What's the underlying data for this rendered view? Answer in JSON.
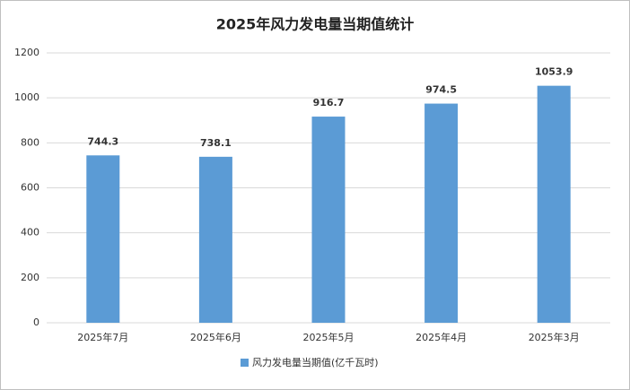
{
  "chart_data": {
    "type": "bar",
    "title": "2025年风力发电量当期值统计",
    "categories": [
      "2025年7月",
      "2025年6月",
      "2025年5月",
      "2025年4月",
      "2025年3月"
    ],
    "series": [
      {
        "name": "风力发电量当期值(亿千瓦时)",
        "color": "#5b9bd5",
        "values": [
          744.3,
          738.1,
          916.7,
          974.5,
          1053.9
        ]
      }
    ],
    "ylim": [
      0,
      1200
    ],
    "yticks": [
      0,
      200,
      400,
      600,
      800,
      1000,
      1200
    ],
    "grid": true,
    "legend": "bottom"
  }
}
